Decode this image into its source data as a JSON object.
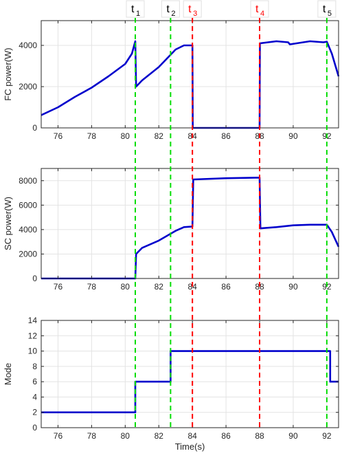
{
  "chart_data": [
    {
      "type": "line",
      "ylabel": "FC power(W)",
      "xlabel": "",
      "xlim": [
        75,
        92.7
      ],
      "ylim": [
        0,
        5200
      ],
      "xticks": [
        76,
        78,
        80,
        82,
        84,
        86,
        88,
        90,
        92
      ],
      "yticks": [
        0,
        2000,
        4000
      ],
      "ytick_labels": [
        "0",
        "2000",
        "4000"
      ],
      "grid": true,
      "series": [
        {
          "color": "#0000cc",
          "points": [
            [
              75,
              620
            ],
            [
              76,
              1000
            ],
            [
              77,
              1500
            ],
            [
              78,
              1950
            ],
            [
              79,
              2500
            ],
            [
              80,
              3100
            ],
            [
              80.4,
              3600
            ],
            [
              80.6,
              4200
            ],
            [
              80.65,
              2000
            ],
            [
              81,
              2300
            ],
            [
              82,
              2950
            ],
            [
              83,
              3800
            ],
            [
              83.5,
              4000
            ],
            [
              84,
              4000
            ],
            [
              84.02,
              0
            ],
            [
              88,
              0
            ],
            [
              88.02,
              4100
            ],
            [
              89,
              4200
            ],
            [
              89.7,
              4150
            ],
            [
              89.8,
              4050
            ],
            [
              91,
              4200
            ],
            [
              91.8,
              4150
            ],
            [
              92,
              4180
            ],
            [
              92.3,
              3600
            ],
            [
              92.7,
              2500
            ]
          ]
        }
      ]
    },
    {
      "type": "line",
      "ylabel": "SC power(W)",
      "xlabel": "",
      "xlim": [
        75,
        92.7
      ],
      "ylim": [
        0,
        9000
      ],
      "xticks": [
        76,
        78,
        80,
        82,
        84,
        86,
        88,
        90,
        92
      ],
      "yticks": [
        0,
        2000,
        4000,
        6000,
        8000
      ],
      "ytick_labels": [
        "0",
        "2000",
        "4000",
        "6000",
        "8000"
      ],
      "grid": true,
      "series": [
        {
          "color": "#0000cc",
          "points": [
            [
              75,
              0
            ],
            [
              80.6,
              0
            ],
            [
              80.65,
              2000
            ],
            [
              81,
              2500
            ],
            [
              82,
              3100
            ],
            [
              83,
              3900
            ],
            [
              83.5,
              4200
            ],
            [
              84,
              4250
            ],
            [
              84.05,
              8100
            ],
            [
              86,
              8200
            ],
            [
              88,
              8250
            ],
            [
              88.05,
              4100
            ],
            [
              89,
              4200
            ],
            [
              90,
              4350
            ],
            [
              91,
              4400
            ],
            [
              92,
              4400
            ],
            [
              92.3,
              3800
            ],
            [
              92.7,
              2600
            ]
          ]
        }
      ]
    },
    {
      "type": "line",
      "ylabel": "Mode",
      "xlabel": "Time(s)",
      "xlim": [
        75,
        92.7
      ],
      "ylim": [
        0,
        14
      ],
      "xticks": [
        76,
        78,
        80,
        82,
        84,
        86,
        88,
        90,
        92
      ],
      "yticks": [
        0,
        2,
        4,
        6,
        8,
        10,
        12,
        14
      ],
      "ytick_labels": [
        "0",
        "2",
        "4",
        "6",
        "8",
        "10",
        "12",
        "14"
      ],
      "grid": true,
      "series": [
        {
          "color": "#0000cc",
          "points": [
            [
              75,
              2
            ],
            [
              80.6,
              2
            ],
            [
              80.6,
              6
            ],
            [
              82.7,
              6
            ],
            [
              82.7,
              10
            ],
            [
              92.2,
              10
            ],
            [
              92.2,
              6
            ],
            [
              92.7,
              6
            ]
          ]
        }
      ]
    }
  ],
  "markers": [
    {
      "base": "t",
      "sub": "1",
      "x": 80.6,
      "color": "#00dd00",
      "label_color": "#000000"
    },
    {
      "base": "t",
      "sub": "2",
      "x": 82.7,
      "color": "#00dd00",
      "label_color": "#000000"
    },
    {
      "base": "t",
      "sub": "3",
      "x": 84.0,
      "color": "#ff0000",
      "label_color": "#ff0000"
    },
    {
      "base": "t",
      "sub": "4",
      "x": 88.0,
      "color": "#ff0000",
      "label_color": "#ff0000"
    },
    {
      "base": "t",
      "sub": "5",
      "x": 92.0,
      "color": "#00dd00",
      "label_color": "#000000"
    }
  ]
}
